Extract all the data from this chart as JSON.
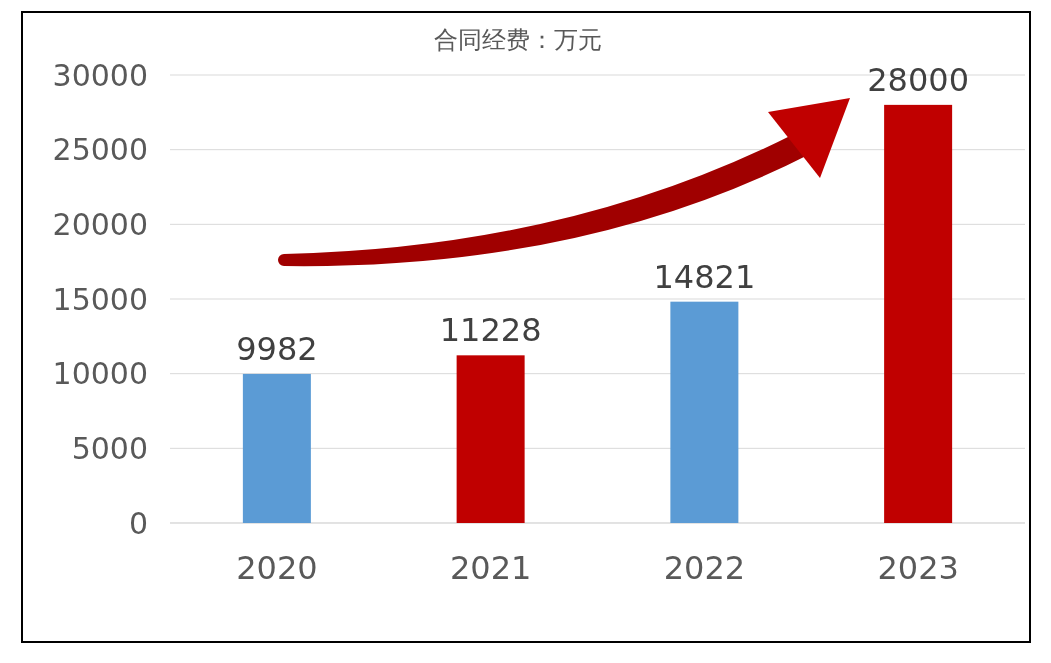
{
  "chart_data": {
    "type": "bar",
    "title": "合同经费：万元",
    "categories": [
      "2020",
      "2021",
      "2022",
      "2023"
    ],
    "values": [
      9982,
      11228,
      14821,
      28000
    ],
    "colors": [
      "#5b9bd5",
      "#c00000",
      "#5b9bd5",
      "#c00000"
    ],
    "ylim": [
      0,
      30000
    ],
    "yticks": [
      0,
      5000,
      10000,
      15000,
      20000,
      25000,
      30000
    ],
    "grid": "y",
    "data_labels": true
  }
}
